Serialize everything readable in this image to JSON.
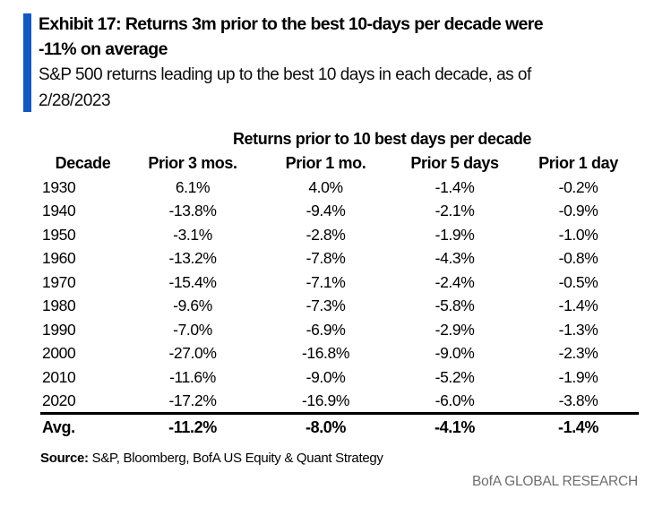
{
  "exhibit": {
    "title_line1": "Exhibit 17: Returns 3m prior to the best 10-days per decade were",
    "title_line2": "-11% on average",
    "subtitle_line1": "S&P 500 returns leading up to the best 10 days in each decade, as of",
    "subtitle_line2": "2/28/2023"
  },
  "table": {
    "span_header": "Returns prior to 10 best days per decade",
    "columns": [
      "Decade",
      "Prior 3 mos.",
      "Prior 1 mo.",
      "Prior 5 days",
      "Prior 1 day"
    ],
    "rows": [
      {
        "decade": "1930",
        "values": [
          "6.1%",
          "4.0%",
          "-1.4%",
          "-0.2%"
        ]
      },
      {
        "decade": "1940",
        "values": [
          "-13.8%",
          "-9.4%",
          "-2.1%",
          "-0.9%"
        ]
      },
      {
        "decade": "1950",
        "values": [
          "-3.1%",
          "-2.8%",
          "-1.9%",
          "-1.0%"
        ]
      },
      {
        "decade": "1960",
        "values": [
          "-13.2%",
          "-7.8%",
          "-4.3%",
          "-0.8%"
        ]
      },
      {
        "decade": "1970",
        "values": [
          "-15.4%",
          "-7.1%",
          "-2.4%",
          "-0.5%"
        ]
      },
      {
        "decade": "1980",
        "values": [
          "-9.6%",
          "-7.3%",
          "-5.8%",
          "-1.4%"
        ]
      },
      {
        "decade": "1990",
        "values": [
          "-7.0%",
          "-6.9%",
          "-2.9%",
          "-1.3%"
        ]
      },
      {
        "decade": "2000",
        "values": [
          "-27.0%",
          "-16.8%",
          "-9.0%",
          "-2.3%"
        ]
      },
      {
        "decade": "2010",
        "values": [
          "-11.6%",
          "-9.0%",
          "-5.2%",
          "-1.9%"
        ]
      },
      {
        "decade": "2020",
        "values": [
          "-17.2%",
          "-16.9%",
          "-6.0%",
          "-3.8%"
        ]
      }
    ],
    "avg_label": "Avg.",
    "avg_values": [
      "-11.2%",
      "-8.0%",
      "-4.1%",
      "-1.4%"
    ]
  },
  "source": {
    "label": "Source:",
    "text": "S&P, Bloomberg, BofA US Equity & Quant Strategy"
  },
  "footer": {
    "brand": "BofA GLOBAL RESEARCH"
  },
  "colors": {
    "accent_blue": "#1158C6",
    "footer_gray": "#6e6e6e"
  },
  "chart_data": {
    "type": "table",
    "title": "Returns prior to 10 best days per decade",
    "units": "%",
    "columns": [
      "Decade",
      "Prior 3 mos.",
      "Prior 1 mo.",
      "Prior 5 days",
      "Prior 1 day"
    ],
    "rows": [
      [
        "1930",
        6.1,
        4.0,
        -1.4,
        -0.2
      ],
      [
        "1940",
        -13.8,
        -9.4,
        -2.1,
        -0.9
      ],
      [
        "1950",
        -3.1,
        -2.8,
        -1.9,
        -1.0
      ],
      [
        "1960",
        -13.2,
        -7.8,
        -4.3,
        -0.8
      ],
      [
        "1970",
        -15.4,
        -7.1,
        -2.4,
        -0.5
      ],
      [
        "1980",
        -9.6,
        -7.3,
        -5.8,
        -1.4
      ],
      [
        "1990",
        -7.0,
        -6.9,
        -2.9,
        -1.3
      ],
      [
        "2000",
        -27.0,
        -16.8,
        -9.0,
        -2.3
      ],
      [
        "2010",
        -11.6,
        -9.0,
        -5.2,
        -1.9
      ],
      [
        "2020",
        -17.2,
        -16.9,
        -6.0,
        -3.8
      ],
      [
        "Avg.",
        -11.2,
        -8.0,
        -4.1,
        -1.4
      ]
    ]
  }
}
